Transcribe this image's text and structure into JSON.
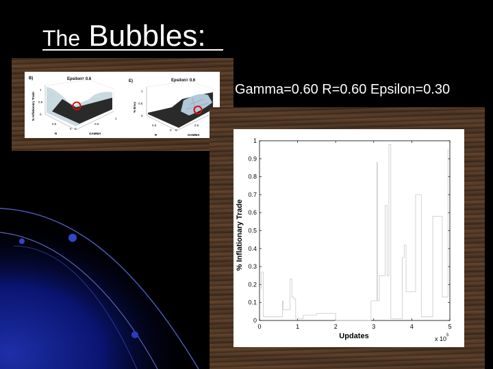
{
  "slide": {
    "title_prefix": "The",
    "title_main": "Bubbles",
    "title_suffix": ":",
    "params_text": "Gamma=0.60 R=0.60 Epsilon=0.30"
  },
  "insets": [
    {
      "panel_label": "B)",
      "title": "Epsilon= 0.6",
      "zlabel": "% Inflationary Trade",
      "xlabel": "R",
      "ylabel": "GAMMA",
      "zticks": [
        "1",
        "0.5",
        "0"
      ],
      "xticks": [
        "0.5",
        "0"
      ],
      "yticks": [
        "0",
        "0.5",
        "1"
      ]
    },
    {
      "panel_label": "E)",
      "title": "Epsilon= 0.6",
      "zlabel": "% Envy",
      "xlabel": "R",
      "ylabel": "GAMMA",
      "zticks": [
        "1",
        "0.5",
        "0"
      ],
      "xticks": [
        "0.5",
        "0"
      ],
      "yticks": [
        "0",
        "0.5",
        "1"
      ]
    }
  ],
  "chart_data": {
    "type": "line",
    "title": "",
    "xlabel": "Updates",
    "ylabel": "% Inflationary Trade",
    "x_multiplier_label": "x 10",
    "x_multiplier_exp": "5",
    "xlim": [
      0,
      5
    ],
    "ylim": [
      0,
      1
    ],
    "xticks": [
      "0",
      "1",
      "2",
      "3",
      "4",
      "5"
    ],
    "yticks": [
      "0",
      "0.1",
      "0.2",
      "0.3",
      "0.4",
      "0.5",
      "0.6",
      "0.7",
      "0.8",
      "0.9",
      "1"
    ],
    "line_color": "#c8c8c8",
    "series": [
      {
        "x": [
          0,
          0.05,
          0.1,
          0.15,
          0.18,
          0.3,
          0.55,
          0.6,
          0.62,
          0.75,
          0.8,
          0.85,
          0.9,
          0.95,
          1.1,
          1.15,
          1.2,
          1.4,
          1.5,
          1.7,
          1.9,
          2.0,
          2.9,
          2.93,
          3.05,
          3.08,
          3.1,
          3.15,
          3.2,
          3.3,
          3.35,
          3.4,
          3.45,
          3.5,
          3.55,
          3.6,
          3.7,
          3.75,
          3.8,
          3.85,
          3.9,
          4.0,
          4.05,
          4.1,
          4.2,
          4.25,
          4.3,
          4.4,
          4.5,
          4.55,
          4.6,
          4.65,
          4.7,
          4.8,
          4.9,
          4.95,
          5.0
        ],
        "y": [
          0.18,
          0.27,
          0.02,
          0.02,
          0.02,
          0.02,
          0.02,
          0.11,
          0.06,
          0.06,
          0.23,
          0.13,
          0.12,
          0.01,
          0.01,
          0.03,
          0.03,
          0.03,
          0.04,
          0.04,
          0.04,
          0.0,
          0.0,
          0.11,
          0.11,
          0.88,
          0.11,
          0.25,
          0.25,
          0.64,
          0.25,
          0.98,
          0.01,
          0.01,
          0.01,
          0.01,
          0.01,
          0.35,
          0.42,
          0.16,
          0.16,
          0.16,
          0.16,
          0.7,
          0.7,
          0.02,
          0.02,
          0.02,
          0.02,
          0.58,
          0.58,
          0.58,
          0.58,
          0.13,
          0.13,
          0.95,
          0.95
        ]
      }
    ]
  }
}
